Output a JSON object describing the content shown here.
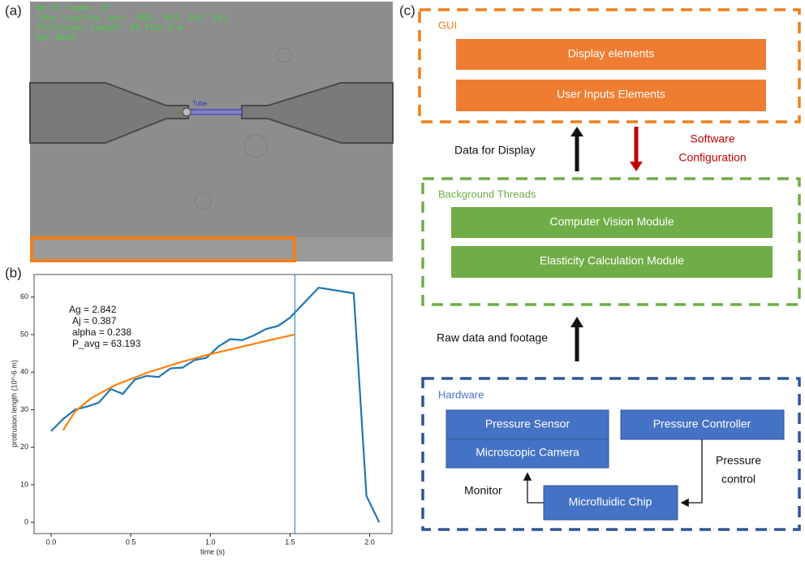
{
  "panel_labels": [
    "(a)",
    "(b)",
    "(c)"
  ],
  "image": {
    "overlay": [
      "No of frame: 23",
      "Tube location (px): (852, 553, 243, 18)",
      "Protrusion Length: 49.711e-6 m",
      "Ag: None"
    ],
    "tube_label": "Tube"
  },
  "chart_data": {
    "type": "line",
    "x_label": "time (s)",
    "y_label": "protrusion length (10^-6 m)",
    "series": [
      {
        "color": "#1f77b4",
        "x": [
          0,
          0.075,
          0.15,
          0.225,
          0.3,
          0.375,
          0.45,
          0.525,
          0.6,
          0.675,
          0.75,
          0.825,
          0.9,
          0.975,
          1.05,
          1.125,
          1.2,
          1.275,
          1.35,
          1.425,
          1.5,
          1.68,
          1.9,
          1.98,
          2.06
        ],
        "values": [
          24.3,
          27.5,
          30,
          30.8,
          31.9,
          35.5,
          34.2,
          38,
          39,
          38.7,
          41,
          41.2,
          43.2,
          43.8,
          46.8,
          48.8,
          48.5,
          49.8,
          51.5,
          52.3,
          54.5,
          62.5,
          61,
          7,
          0
        ]
      },
      {
        "color": "#ff7f0e",
        "x": [
          0.075,
          0.15,
          0.25,
          0.4,
          0.6,
          0.8,
          1.0,
          1.2,
          1.4,
          1.53
        ],
        "values": [
          24.5,
          29.5,
          33,
          36.5,
          39.8,
          42.5,
          44.8,
          46.8,
          48.8,
          50
        ]
      }
    ],
    "vline_x": 1.53,
    "vline_color": "#1f77b4",
    "annotations": [
      "Ag = 2.842",
      "Aj = 0.387",
      "alpha = 0.238",
      "P_avg = 63.193"
    ],
    "xlim": [
      -0.107,
      2.14
    ],
    "ylim": [
      -3,
      66
    ],
    "xticks": [
      {
        "value": 0,
        "label": "0.0"
      },
      0.5,
      {
        "value": 1,
        "label": "1.0"
      },
      1.5,
      {
        "value": 2,
        "label": "2.0"
      }
    ],
    "yticks": [
      0,
      10,
      20,
      30,
      40,
      50,
      60
    ],
    "grid": false
  },
  "diagram": {
    "gui": {
      "title": "GUI",
      "items": [
        "Display elements",
        "User Inputs Elements"
      ]
    },
    "data_for_display": "Data for Display",
    "software_configuration": [
      "Software",
      "Configuration"
    ],
    "background": {
      "title": "Background Threads",
      "items": [
        "Computer Vision Module",
        "Elasticity Calculation Module"
      ]
    },
    "raw_data": "Raw data and footage",
    "hardware": {
      "title": "Hardware",
      "pressure_sensor": "Pressure Sensor",
      "camera": "Microscopic Camera",
      "controller": "Pressure Controller",
      "chip": "Microfluidic Chip",
      "monitor": "Monitor",
      "pressure_control": [
        "Pressure",
        "control"
      ]
    }
  }
}
